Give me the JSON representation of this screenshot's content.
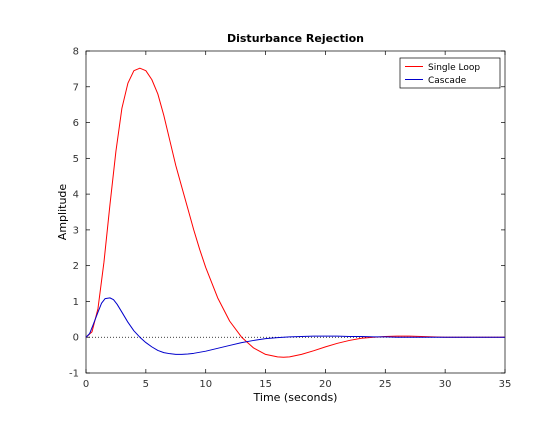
{
  "chart_data": {
    "type": "line",
    "title": "Disturbance Rejection",
    "xlabel": "Time (seconds)",
    "ylabel": "Amplitude",
    "xlim": [
      0,
      35
    ],
    "ylim": [
      -1,
      8
    ],
    "xticks": [
      0,
      5,
      10,
      15,
      20,
      25,
      30,
      35
    ],
    "yticks": [
      -1,
      0,
      1,
      2,
      3,
      4,
      5,
      6,
      7,
      8
    ],
    "grid": false,
    "legend": "top-right",
    "reference_line": {
      "y": 0,
      "style": "dotted",
      "color": "#000000"
    },
    "series": [
      {
        "name": "Single Loop",
        "color": "#ff0000",
        "x": [
          0,
          0.5,
          1,
          1.5,
          2,
          2.5,
          3,
          3.5,
          4,
          4.5,
          5,
          5.5,
          6,
          6.5,
          7,
          7.5,
          8,
          8.5,
          9,
          9.5,
          10,
          11,
          12,
          13,
          14,
          15,
          16,
          16.5,
          17,
          18,
          19,
          20,
          21,
          22,
          23,
          24,
          25,
          26,
          27,
          28,
          29,
          30,
          31,
          32,
          33,
          34,
          35
        ],
        "y": [
          0,
          0.15,
          0.8,
          2.1,
          3.7,
          5.2,
          6.4,
          7.1,
          7.45,
          7.52,
          7.45,
          7.2,
          6.8,
          6.2,
          5.5,
          4.8,
          4.2,
          3.6,
          3.0,
          2.45,
          1.95,
          1.1,
          0.45,
          0.0,
          -0.3,
          -0.48,
          -0.55,
          -0.56,
          -0.55,
          -0.48,
          -0.38,
          -0.27,
          -0.17,
          -0.09,
          -0.03,
          0.0,
          0.02,
          0.03,
          0.03,
          0.02,
          0.01,
          0.0,
          0.0,
          0.0,
          0.0,
          0.0,
          0.0
        ]
      },
      {
        "name": "Cascade",
        "color": "#0000cc",
        "x": [
          0,
          0.3,
          0.6,
          1,
          1.3,
          1.6,
          2,
          2.3,
          2.6,
          3,
          3.5,
          4,
          4.5,
          5,
          5.5,
          6,
          6.5,
          7,
          7.5,
          8,
          8.5,
          9,
          10,
          11,
          12,
          13,
          14,
          15,
          16,
          17,
          18,
          19,
          20,
          21,
          22,
          23,
          24,
          25,
          26,
          27,
          28,
          30,
          32,
          35
        ],
        "y": [
          0,
          0.1,
          0.35,
          0.7,
          0.95,
          1.08,
          1.1,
          1.05,
          0.92,
          0.7,
          0.42,
          0.18,
          0.0,
          -0.15,
          -0.27,
          -0.37,
          -0.43,
          -0.46,
          -0.48,
          -0.48,
          -0.47,
          -0.45,
          -0.39,
          -0.31,
          -0.23,
          -0.15,
          -0.09,
          -0.04,
          -0.01,
          0.01,
          0.02,
          0.03,
          0.03,
          0.03,
          0.02,
          0.02,
          0.01,
          0.01,
          0.0,
          0.0,
          0.0,
          0.0,
          0.0,
          0.0
        ]
      }
    ]
  }
}
